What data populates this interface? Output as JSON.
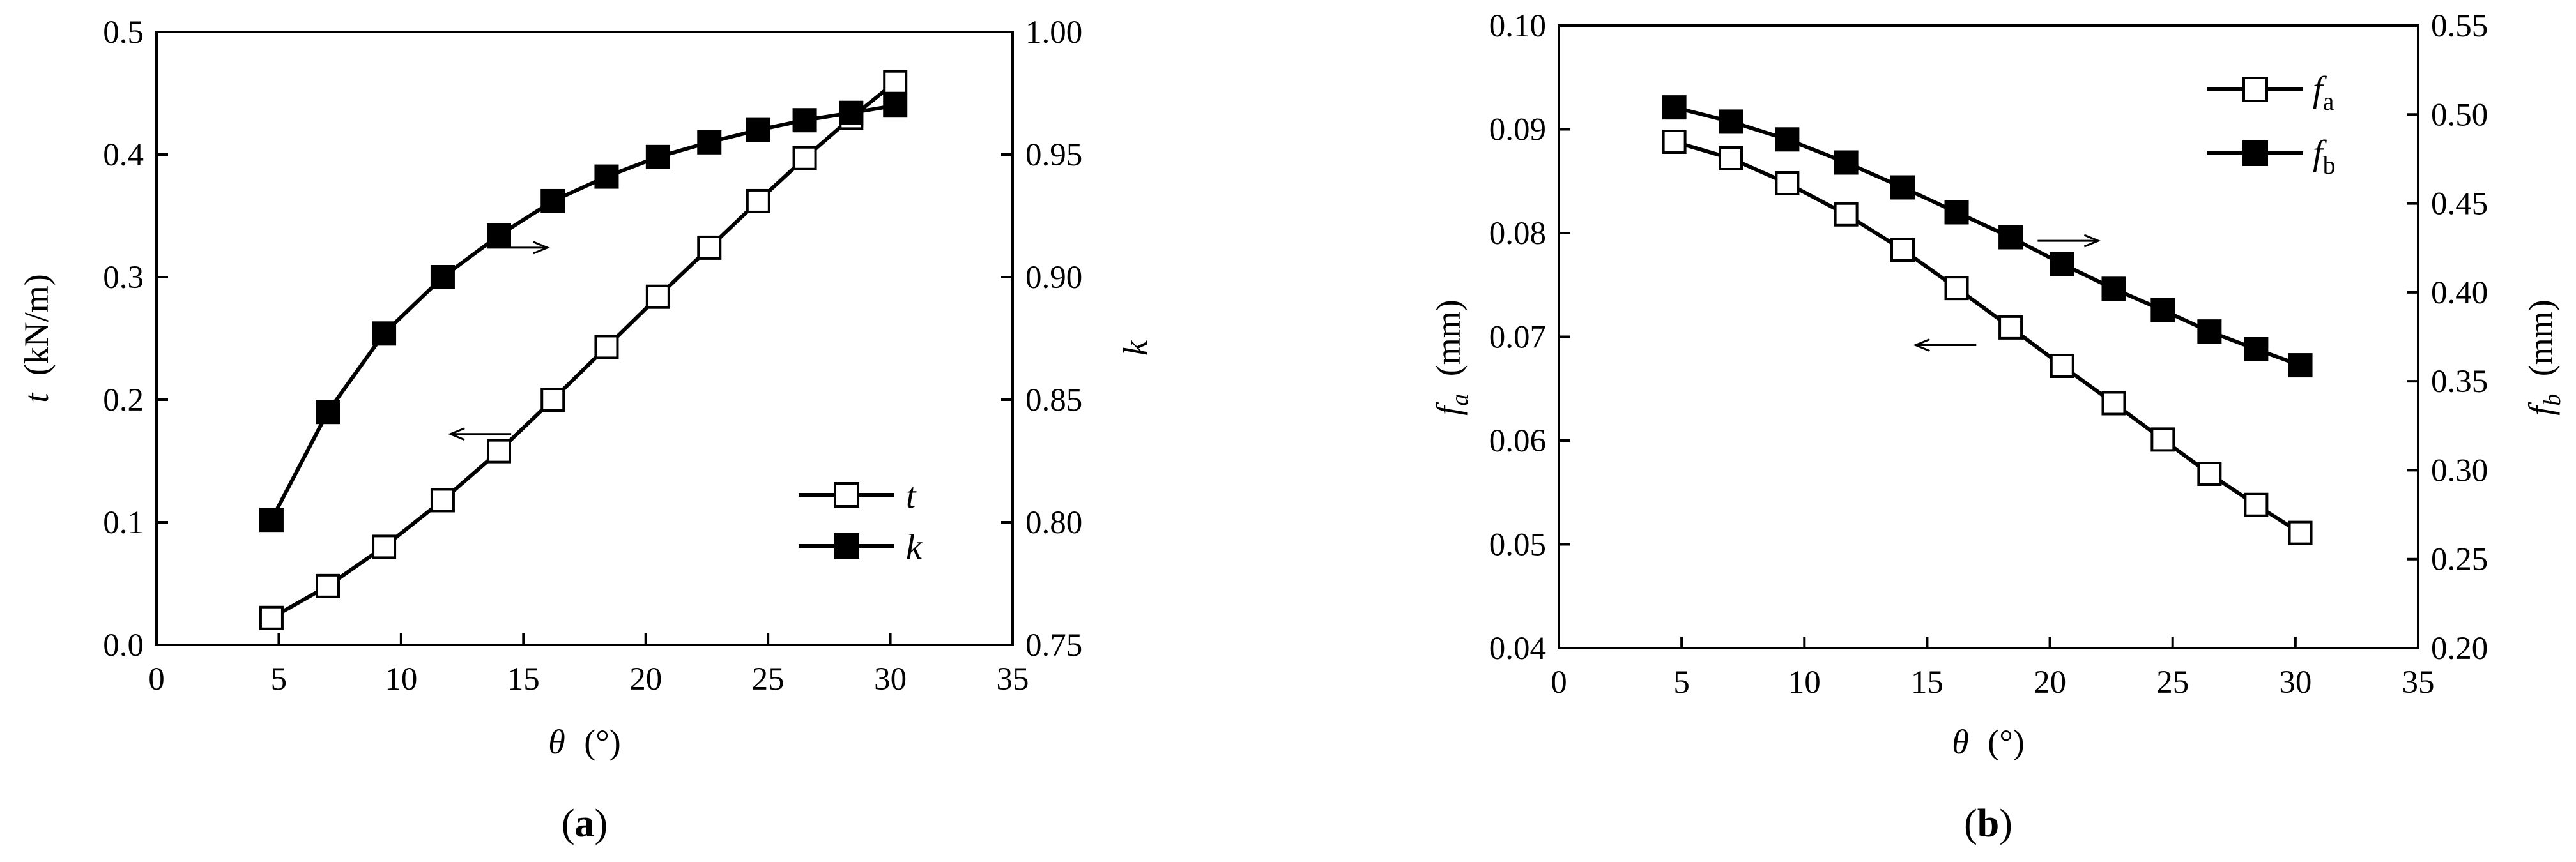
{
  "chart_data": [
    {
      "type": "line",
      "panel_label": "(a)",
      "xlabel": "θ (°)",
      "ylabel": "t (kN/m)",
      "y2label": "k",
      "xlim": [
        0,
        35
      ],
      "ylim": [
        0.0,
        0.5
      ],
      "y2lim": [
        0.75,
        1.0
      ],
      "xticks": [
        "0",
        "5",
        "10",
        "15",
        "20",
        "25",
        "30",
        "35"
      ],
      "yticks": [
        "0.0",
        "0.1",
        "0.2",
        "0.3",
        "0.4",
        "0.5"
      ],
      "y2ticks": [
        "0.75",
        "0.80",
        "0.85",
        "0.90",
        "0.95",
        "1.00"
      ],
      "legend_position": "lower-right",
      "series": [
        {
          "name": "t",
          "axis": "left",
          "marker": "open-square",
          "x": [
            4.7,
            7.0,
            9.3,
            11.7,
            14.0,
            16.2,
            18.4,
            20.5,
            22.6,
            24.6,
            26.5,
            28.4,
            30.2
          ],
          "values": [
            0.022,
            0.048,
            0.08,
            0.118,
            0.158,
            0.2,
            0.243,
            0.284,
            0.324,
            0.362,
            0.397,
            0.43,
            0.459
          ]
        },
        {
          "name": "k",
          "axis": "right",
          "marker": "filled-square",
          "x": [
            4.7,
            7.0,
            9.3,
            11.7,
            14.0,
            16.2,
            18.4,
            20.5,
            22.6,
            24.6,
            26.5,
            28.4,
            30.2
          ],
          "values": [
            0.801,
            0.845,
            0.877,
            0.9,
            0.917,
            0.931,
            0.941,
            0.949,
            0.955,
            0.96,
            0.964,
            0.967,
            0.97
          ]
        }
      ],
      "annotations": [
        {
          "type": "arrow",
          "direction": "right",
          "series": "k",
          "x": 13.5,
          "y2": 0.912
        },
        {
          "type": "arrow",
          "direction": "left",
          "series": "t",
          "x": 14.5,
          "y": 0.172
        }
      ]
    },
    {
      "type": "line",
      "panel_label": "(b)",
      "xlabel": "θ (°)",
      "ylabel": "fa (mm)",
      "y2label": "fb (mm)",
      "xlim": [
        0,
        35
      ],
      "ylim": [
        0.04,
        0.1
      ],
      "y2lim": [
        0.2,
        0.55
      ],
      "xticks": [
        "0",
        "5",
        "10",
        "15",
        "20",
        "25",
        "30",
        "35"
      ],
      "yticks": [
        "0.04",
        "0.05",
        "0.06",
        "0.07",
        "0.08",
        "0.09",
        "0.10"
      ],
      "y2ticks": [
        "0.20",
        "0.25",
        "0.30",
        "0.35",
        "0.40",
        "0.45",
        "0.50",
        "0.55"
      ],
      "legend_position": "top-right",
      "series": [
        {
          "name": "fa",
          "axis": "left",
          "marker": "open-square",
          "x": [
            4.7,
            7.0,
            9.3,
            11.7,
            14.0,
            16.2,
            18.4,
            20.5,
            22.6,
            24.6,
            26.5,
            28.4,
            30.2
          ],
          "values": [
            0.0888,
            0.0872,
            0.0848,
            0.0818,
            0.0784,
            0.0747,
            0.0709,
            0.0672,
            0.0636,
            0.0601,
            0.0568,
            0.0538,
            0.0511
          ]
        },
        {
          "name": "fb",
          "axis": "right",
          "marker": "filled-square",
          "x": [
            4.7,
            7.0,
            9.3,
            11.7,
            14.0,
            16.2,
            18.4,
            20.5,
            22.6,
            24.6,
            26.5,
            28.4,
            30.2
          ],
          "values": [
            0.504,
            0.496,
            0.486,
            0.473,
            0.459,
            0.445,
            0.431,
            0.416,
            0.402,
            0.39,
            0.378,
            0.368,
            0.359
          ]
        }
      ],
      "annotations": [
        {
          "type": "arrow",
          "direction": "right",
          "series": "fb",
          "x": 19.5,
          "y2": 0.429
        },
        {
          "type": "arrow",
          "direction": "left",
          "series": "fa",
          "x": 17.0,
          "y": 0.0692
        }
      ]
    }
  ],
  "legend_labels": {
    "a": {
      "t": "t",
      "k": "k"
    },
    "b": {
      "fa_main": "f",
      "fa_sub": "a",
      "fb_main": "f",
      "fb_sub": "b"
    }
  },
  "axis_labels": {
    "a": {
      "x_main": "θ",
      "x_unit": "(°)",
      "y_main": "t",
      "y_unit": "(kN/m)",
      "y2": "k"
    },
    "b": {
      "x_main": "θ",
      "x_unit": "(°)",
      "y_main": "f",
      "y_sub": "a",
      "y_unit": "(mm)",
      "y2_main": "f",
      "y2_sub": "b",
      "y2_unit": "(mm)"
    }
  },
  "captions": {
    "a": {
      "open": "(",
      "letter": "a",
      "close": ")"
    },
    "b": {
      "open": "(",
      "letter": "b",
      "close": ")"
    }
  }
}
